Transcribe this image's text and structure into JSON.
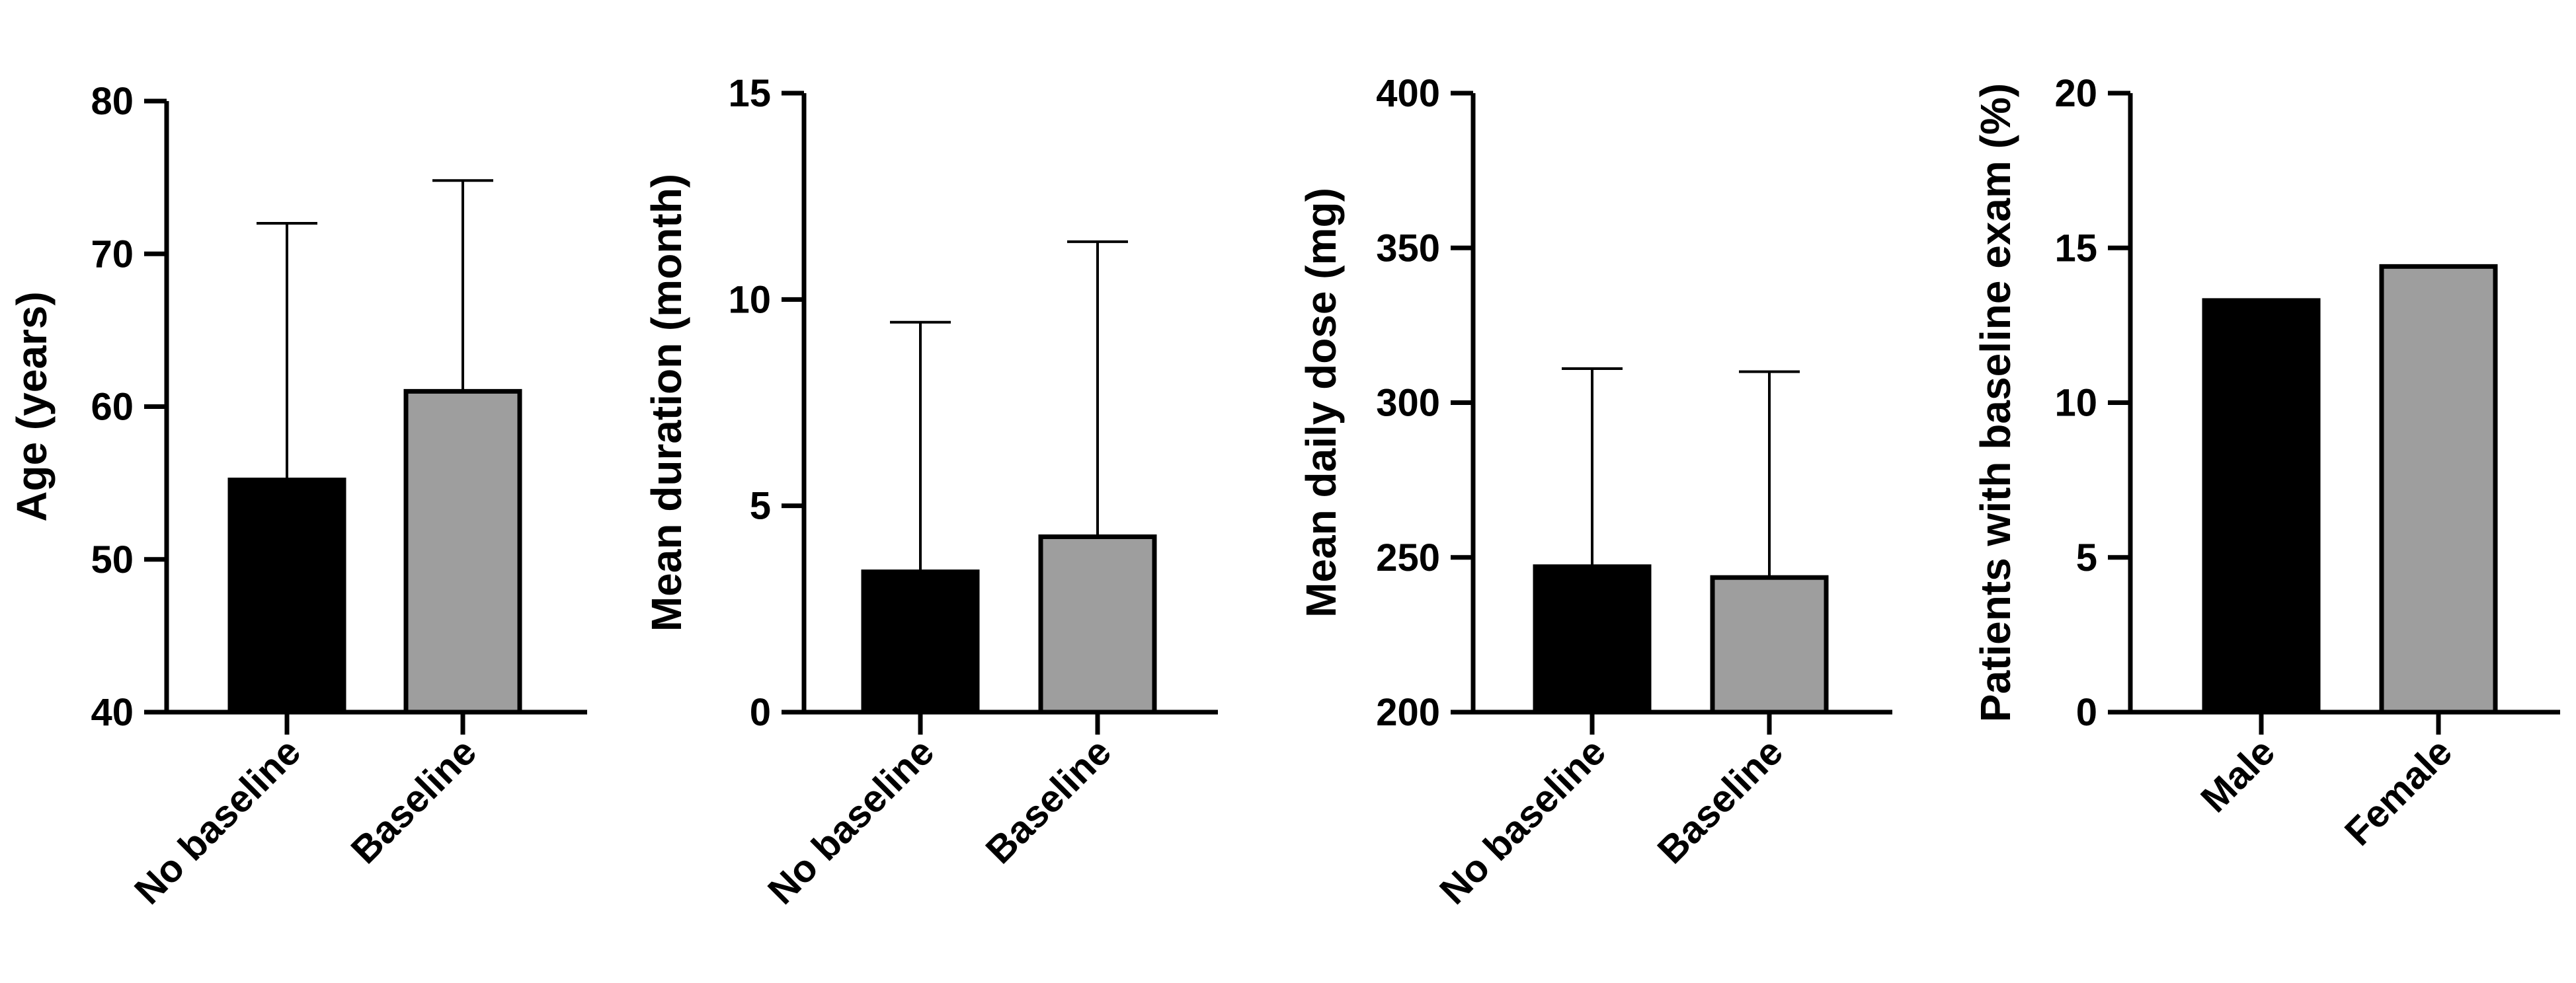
{
  "chart_data": [
    {
      "type": "bar",
      "ylabel": "Age (years)",
      "ylim": [
        40,
        80
      ],
      "yticks": [
        "40",
        "50",
        "60",
        "70",
        "80"
      ],
      "categories": [
        "No baseline",
        "Baseline"
      ],
      "values": [
        55.2,
        61.0
      ],
      "error_upper": [
        72.0,
        74.8
      ],
      "colors": [
        "#000000",
        "#9e9e9e"
      ]
    },
    {
      "type": "bar",
      "ylabel": "Mean duration (month)",
      "ylim": [
        0,
        15
      ],
      "yticks": [
        "0",
        "5",
        "10",
        "15"
      ],
      "categories": [
        "No baseline",
        "Baseline"
      ],
      "values": [
        3.4,
        4.25
      ],
      "error_upper": [
        9.45,
        11.4
      ],
      "colors": [
        "#000000",
        "#9e9e9e"
      ]
    },
    {
      "type": "bar",
      "ylabel": "Mean daily dose  (mg)",
      "ylim": [
        200,
        400
      ],
      "yticks": [
        "200",
        "250",
        "300",
        "350",
        "400"
      ],
      "categories": [
        "No baseline",
        "Baseline"
      ],
      "values": [
        247,
        243.5
      ],
      "error_upper": [
        311,
        310
      ],
      "colors": [
        "#000000",
        "#9e9e9e"
      ]
    },
    {
      "type": "bar",
      "ylabel": "Patients with baseline exam (%)",
      "ylim": [
        0,
        20
      ],
      "yticks": [
        "0",
        "5",
        "10",
        "15",
        "20"
      ],
      "categories": [
        "Male",
        "Female"
      ],
      "values": [
        13.3,
        14.4
      ],
      "error_upper": [
        null,
        null
      ],
      "colors": [
        "#000000",
        "#9e9e9e"
      ]
    }
  ]
}
